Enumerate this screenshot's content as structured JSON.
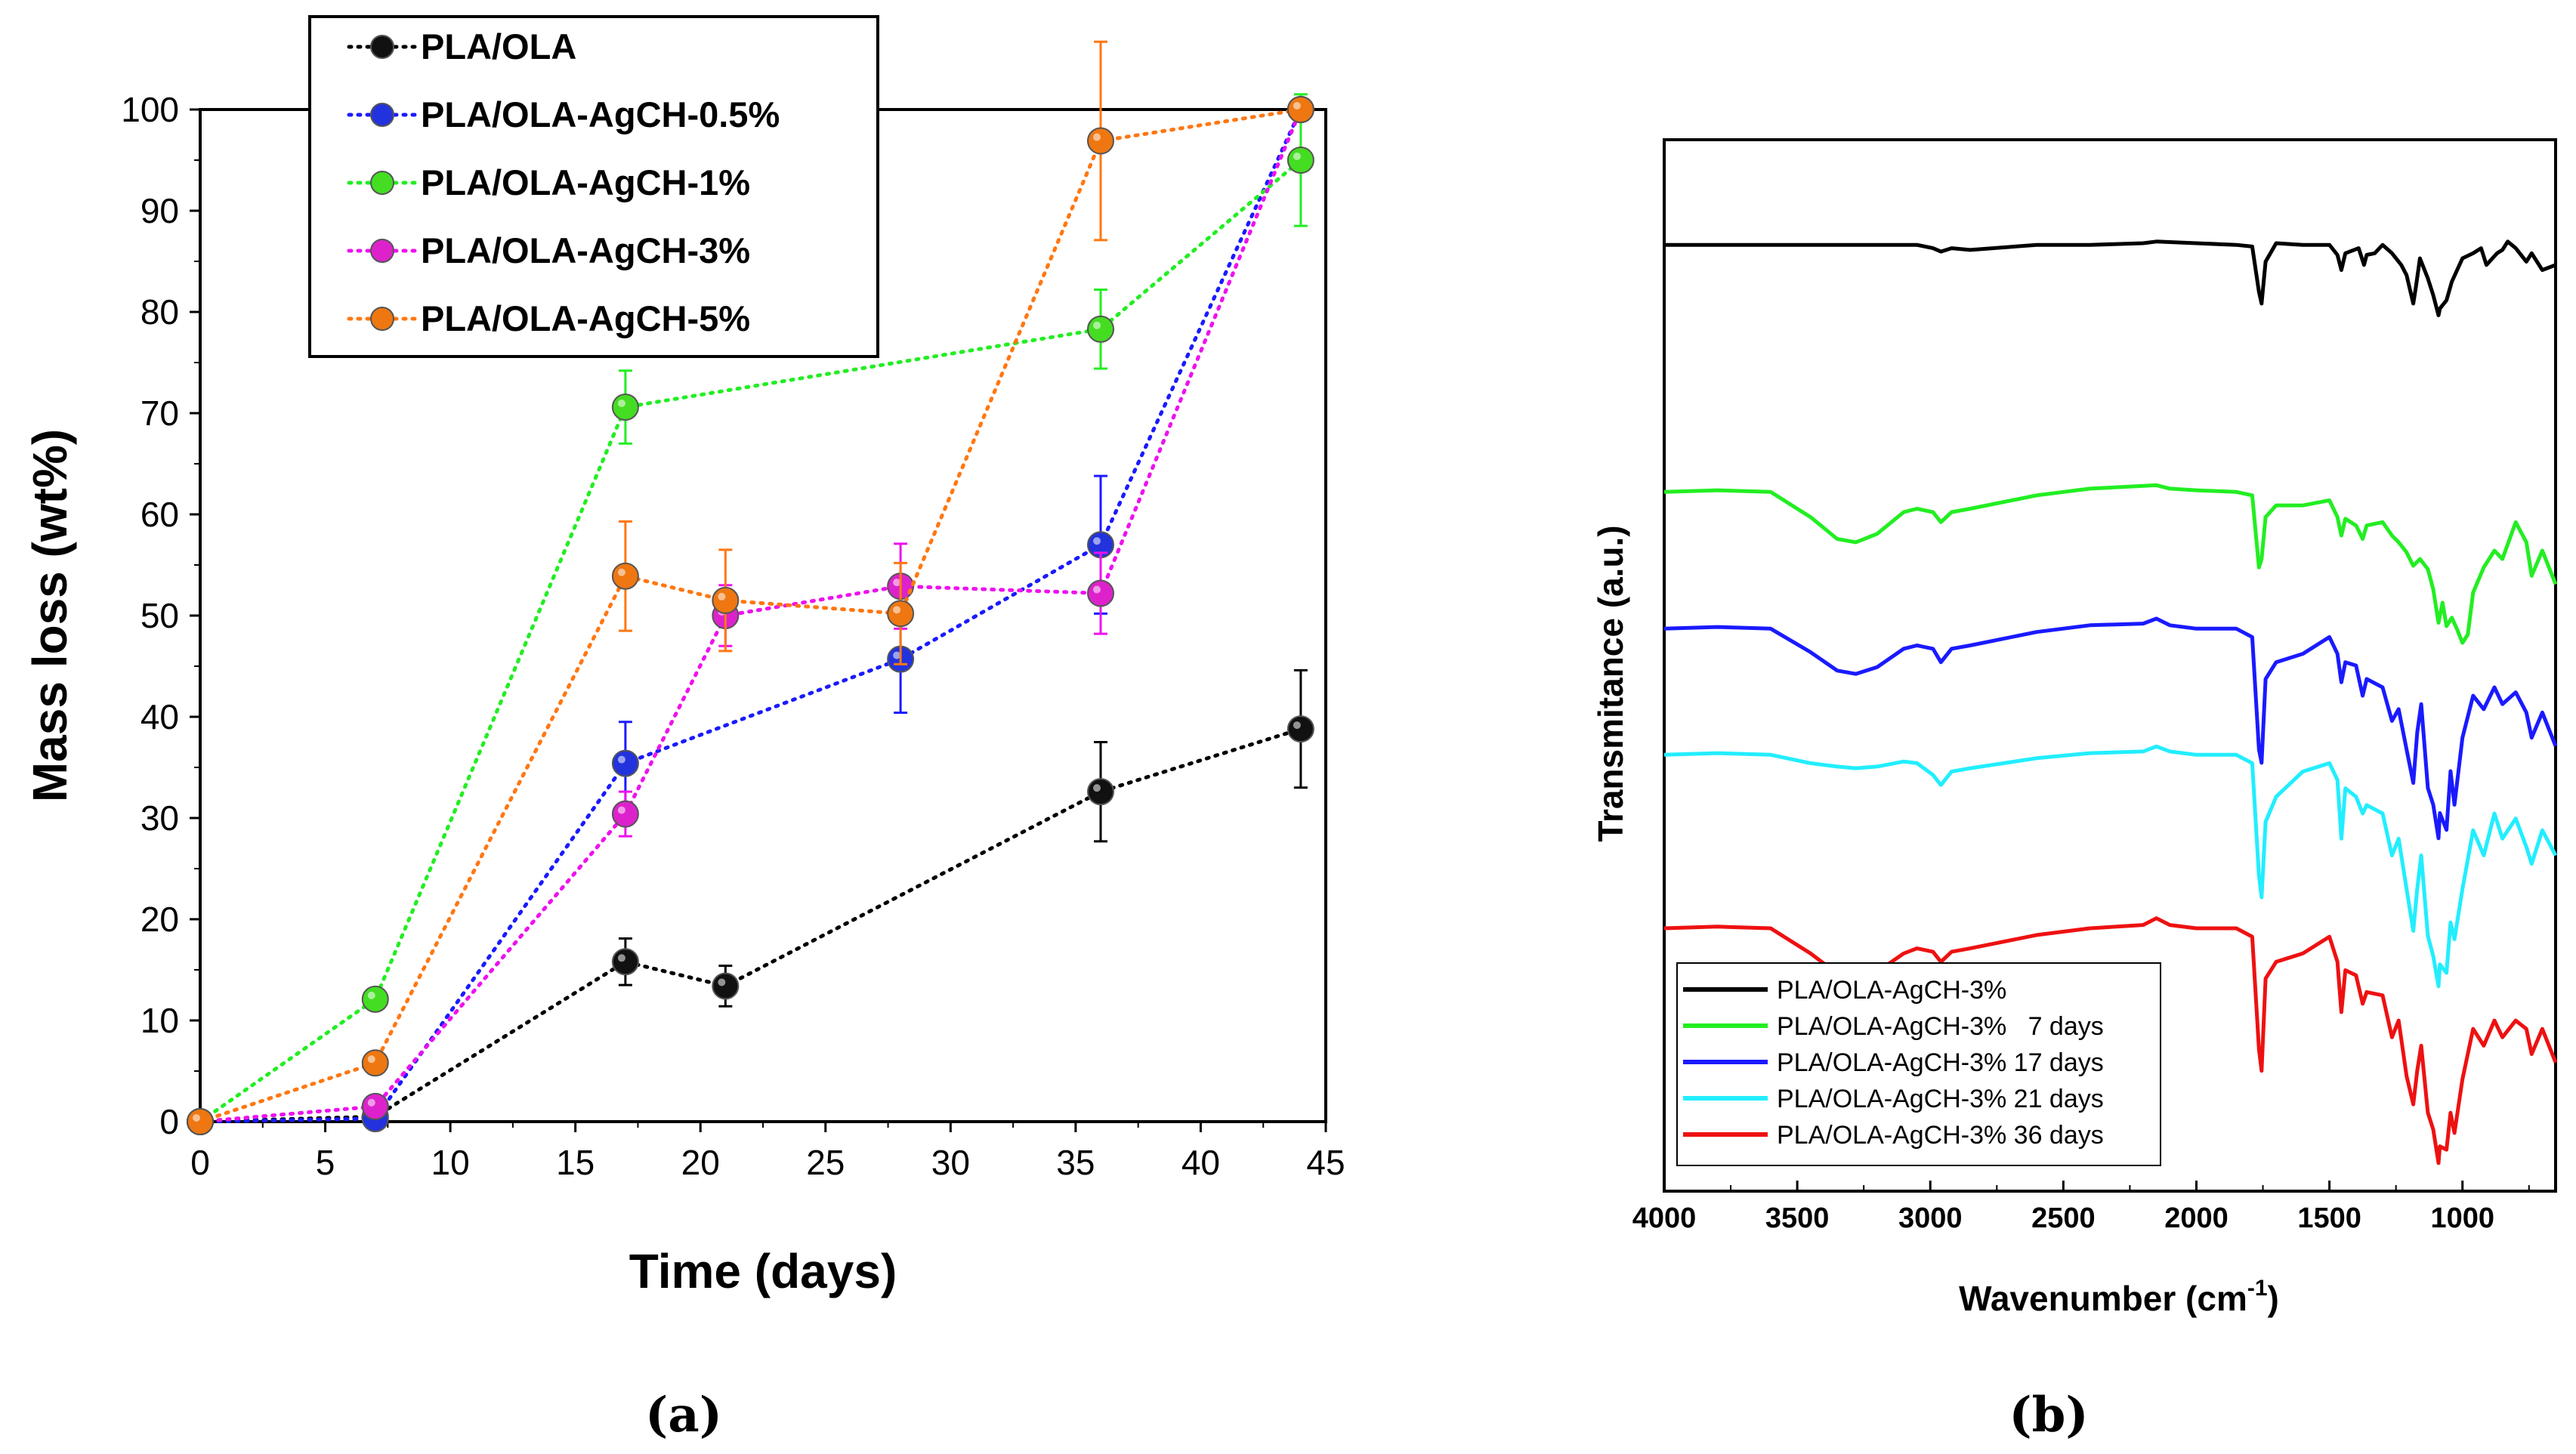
{
  "chart_data": [
    {
      "type": "line",
      "panel_label": "(a)",
      "xlabel": "Time (days)",
      "ylabel": "Mass loss (wt%)",
      "xlim": [
        0,
        45
      ],
      "ylim": [
        0,
        100
      ],
      "xticks": [
        "0",
        "5",
        "10",
        "15",
        "20",
        "25",
        "30",
        "35",
        "40",
        "45"
      ],
      "yticks": [
        "0",
        "10",
        "20",
        "30",
        "40",
        "50",
        "60",
        "70",
        "80",
        "90",
        "100"
      ],
      "legend_position": "top",
      "series": [
        {
          "name": "PLA/OLA",
          "color": "#000000",
          "marker_color": "#111111",
          "x": [
            0,
            7,
            17,
            21,
            36,
            44
          ],
          "y": [
            0,
            0.5,
            15.8,
            13.4,
            32.6,
            38.8
          ],
          "err": [
            0,
            0,
            2.3,
            2.0,
            4.9,
            5.8
          ]
        },
        {
          "name": "PLA/OLA-AgCH-0.5%",
          "color": "#1a1aff",
          "marker_color": "#2233dd",
          "x": [
            0,
            7,
            17,
            28,
            36,
            44
          ],
          "y": [
            0,
            0.3,
            35.4,
            45.7,
            57.0,
            100
          ],
          "err": [
            0,
            0,
            4.1,
            5.3,
            6.8,
            0
          ]
        },
        {
          "name": "PLA/OLA-AgCH-1%",
          "color": "#22ee22",
          "marker_color": "#44dd22",
          "x": [
            0,
            7,
            17,
            36,
            44
          ],
          "y": [
            0,
            12.1,
            70.6,
            78.3,
            95.0
          ],
          "err": [
            0,
            0,
            3.6,
            3.9,
            6.5
          ]
        },
        {
          "name": "PLA/OLA-AgCH-3%",
          "color": "#ee11ee",
          "marker_color": "#dd22cc",
          "x": [
            0,
            7,
            17,
            21,
            28,
            36,
            44
          ],
          "y": [
            0,
            1.5,
            30.4,
            50.0,
            52.9,
            52.2,
            100
          ],
          "err": [
            0,
            0,
            2.2,
            3.0,
            4.2,
            4.0,
            0
          ]
        },
        {
          "name": "PLA/OLA-AgCH-5%",
          "color": "#ff7711",
          "marker_color": "#ee7711",
          "x": [
            0,
            7,
            17,
            21,
            28,
            36,
            44
          ],
          "y": [
            0,
            5.8,
            53.9,
            51.5,
            50.2,
            96.9,
            100
          ],
          "err": [
            0,
            0,
            5.4,
            5.0,
            5.0,
            9.8,
            0
          ]
        }
      ]
    },
    {
      "type": "line",
      "panel_label": "(b)",
      "xlabel": "Wavenumber (cm",
      "xlabel_sup": "-1",
      "xlabel_close": ")",
      "ylabel": "Transmitance (a.u.)",
      "xlim": [
        4000,
        650
      ],
      "xticks": [
        "4000",
        "3500",
        "3000",
        "2500",
        "2000",
        "1500",
        "1000"
      ],
      "xtick_values": [
        4000,
        3500,
        3000,
        2500,
        2000,
        1500,
        1000
      ],
      "legend_position": "bottom-left",
      "series": [
        {
          "name": "PLA/OLA-AgCH-3%",
          "color": "#000000",
          "offset": 0.9,
          "scale": 0.55,
          "x": [
            4000,
            3600,
            3200,
            3050,
            2990,
            2960,
            2920,
            2850,
            2600,
            2400,
            2200,
            2150,
            2000,
            1850,
            1790,
            1765,
            1755,
            1740,
            1700,
            1600,
            1500,
            1470,
            1455,
            1440,
            1390,
            1370,
            1360,
            1330,
            1300,
            1265,
            1230,
            1210,
            1185,
            1175,
            1160,
            1130,
            1110,
            1090,
            1085,
            1060,
            1040,
            1000,
            960,
            930,
            910,
            870,
            850,
            830,
            800,
            760,
            740,
            700,
            650
          ],
          "y": [
            0,
            0,
            0,
            0,
            -0.02,
            -0.04,
            -0.02,
            -0.03,
            0,
            0,
            0.01,
            0.02,
            0.01,
            0,
            -0.01,
            -0.28,
            -0.35,
            -0.1,
            0.01,
            0,
            0,
            -0.06,
            -0.15,
            -0.05,
            -0.02,
            -0.12,
            -0.06,
            -0.05,
            0,
            -0.05,
            -0.12,
            -0.18,
            -0.35,
            -0.25,
            -0.08,
            -0.2,
            -0.3,
            -0.42,
            -0.38,
            -0.33,
            -0.22,
            -0.08,
            -0.05,
            -0.02,
            -0.12,
            -0.05,
            -0.03,
            0.02,
            -0.02,
            -0.1,
            -0.05,
            -0.15,
            -0.12
          ]
        },
        {
          "name": "PLA/OLA-AgCH-3%   7 days",
          "color": "#22ee22",
          "offset": 0.665,
          "scale": 0.55,
          "x": [
            4000,
            3800,
            3600,
            3450,
            3350,
            3280,
            3200,
            3100,
            3050,
            2990,
            2960,
            2920,
            2850,
            2600,
            2400,
            2150,
            2100,
            2000,
            1850,
            1790,
            1765,
            1755,
            1740,
            1700,
            1600,
            1500,
            1470,
            1455,
            1440,
            1400,
            1375,
            1360,
            1300,
            1265,
            1240,
            1210,
            1185,
            1160,
            1130,
            1110,
            1090,
            1075,
            1060,
            1040,
            1020,
            1000,
            980,
            960,
            920,
            880,
            850,
            800,
            760,
            740,
            700,
            650
          ],
          "y": [
            0,
            0.01,
            0,
            -0.15,
            -0.28,
            -0.3,
            -0.25,
            -0.12,
            -0.1,
            -0.12,
            -0.18,
            -0.12,
            -0.1,
            -0.02,
            0.02,
            0.04,
            0.02,
            0.01,
            0,
            -0.02,
            -0.45,
            -0.4,
            -0.15,
            -0.08,
            -0.08,
            -0.05,
            -0.15,
            -0.26,
            -0.16,
            -0.2,
            -0.28,
            -0.2,
            -0.18,
            -0.26,
            -0.3,
            -0.36,
            -0.44,
            -0.4,
            -0.46,
            -0.58,
            -0.78,
            -0.66,
            -0.8,
            -0.75,
            -0.82,
            -0.9,
            -0.85,
            -0.6,
            -0.45,
            -0.35,
            -0.4,
            -0.18,
            -0.3,
            -0.5,
            -0.35,
            -0.55
          ]
        },
        {
          "name": "PLA/OLA-AgCH-3% 17 days",
          "color": "#1a1aff",
          "offset": 0.535,
          "scale": 0.55,
          "x": [
            4000,
            3800,
            3600,
            3450,
            3350,
            3280,
            3200,
            3100,
            3050,
            2990,
            2960,
            2920,
            2850,
            2600,
            2400,
            2200,
            2150,
            2100,
            2000,
            1850,
            1790,
            1765,
            1755,
            1740,
            1700,
            1600,
            1500,
            1470,
            1455,
            1440,
            1400,
            1375,
            1360,
            1300,
            1265,
            1240,
            1210,
            1185,
            1170,
            1155,
            1130,
            1110,
            1090,
            1085,
            1060,
            1045,
            1030,
            1000,
            960,
            920,
            880,
            850,
            800,
            760,
            740,
            700,
            650
          ],
          "y": [
            0,
            0.01,
            0,
            -0.14,
            -0.25,
            -0.27,
            -0.23,
            -0.12,
            -0.1,
            -0.12,
            -0.2,
            -0.12,
            -0.1,
            -0.02,
            0.02,
            0.03,
            0.06,
            0.02,
            0,
            0,
            -0.05,
            -0.72,
            -0.8,
            -0.3,
            -0.2,
            -0.15,
            -0.05,
            -0.15,
            -0.32,
            -0.2,
            -0.22,
            -0.4,
            -0.3,
            -0.35,
            -0.55,
            -0.48,
            -0.72,
            -0.92,
            -0.62,
            -0.45,
            -0.95,
            -1.05,
            -1.25,
            -1.1,
            -1.2,
            -0.85,
            -1.05,
            -0.65,
            -0.4,
            -0.48,
            -0.35,
            -0.45,
            -0.38,
            -0.5,
            -0.65,
            -0.5,
            -0.7
          ]
        },
        {
          "name": "PLA/OLA-AgCH-3% 21 days",
          "color": "#22eeff",
          "offset": 0.415,
          "scale": 0.55,
          "x": [
            4000,
            3800,
            3600,
            3450,
            3350,
            3280,
            3200,
            3100,
            3050,
            2990,
            2960,
            2920,
            2850,
            2600,
            2400,
            2200,
            2150,
            2100,
            2000,
            1850,
            1790,
            1765,
            1755,
            1740,
            1700,
            1600,
            1500,
            1470,
            1455,
            1440,
            1400,
            1375,
            1360,
            1300,
            1265,
            1240,
            1210,
            1185,
            1170,
            1155,
            1130,
            1110,
            1090,
            1085,
            1060,
            1045,
            1030,
            1000,
            960,
            920,
            880,
            850,
            800,
            760,
            740,
            700,
            650
          ],
          "y": [
            0,
            0.01,
            0,
            -0.05,
            -0.07,
            -0.08,
            -0.07,
            -0.04,
            -0.05,
            -0.12,
            -0.18,
            -0.1,
            -0.08,
            -0.02,
            0.01,
            0.02,
            0.05,
            0.02,
            0,
            0,
            -0.05,
            -0.72,
            -0.85,
            -0.4,
            -0.25,
            -0.1,
            -0.05,
            -0.15,
            -0.5,
            -0.2,
            -0.25,
            -0.35,
            -0.3,
            -0.35,
            -0.6,
            -0.5,
            -0.8,
            -1.05,
            -0.8,
            -0.6,
            -1.08,
            -1.2,
            -1.38,
            -1.25,
            -1.3,
            -1.0,
            -1.1,
            -0.8,
            -0.45,
            -0.6,
            -0.35,
            -0.5,
            -0.38,
            -0.55,
            -0.65,
            -0.45,
            -0.6
          ]
        },
        {
          "name": "PLA/OLA-AgCH-3% 36 days",
          "color": "#ee1111",
          "offset": 0.25,
          "scale": 0.55,
          "x": [
            4000,
            3800,
            3600,
            3450,
            3350,
            3280,
            3200,
            3100,
            3050,
            2990,
            2960,
            2920,
            2850,
            2600,
            2400,
            2200,
            2150,
            2100,
            2000,
            1850,
            1790,
            1765,
            1755,
            1740,
            1700,
            1600,
            1500,
            1470,
            1455,
            1440,
            1400,
            1375,
            1360,
            1300,
            1265,
            1240,
            1210,
            1185,
            1170,
            1155,
            1130,
            1110,
            1090,
            1085,
            1060,
            1045,
            1030,
            1000,
            960,
            920,
            880,
            850,
            800,
            760,
            740,
            700,
            650
          ],
          "y": [
            0,
            0.01,
            0,
            -0.15,
            -0.27,
            -0.3,
            -0.26,
            -0.15,
            -0.12,
            -0.14,
            -0.2,
            -0.14,
            -0.12,
            -0.04,
            0.0,
            0.02,
            0.06,
            0.02,
            0,
            0,
            -0.05,
            -0.72,
            -0.85,
            -0.3,
            -0.2,
            -0.15,
            -0.05,
            -0.2,
            -0.5,
            -0.25,
            -0.28,
            -0.45,
            -0.38,
            -0.4,
            -0.65,
            -0.55,
            -0.88,
            -1.05,
            -0.85,
            -0.7,
            -1.1,
            -1.2,
            -1.4,
            -1.3,
            -1.32,
            -1.1,
            -1.22,
            -0.9,
            -0.6,
            -0.7,
            -0.55,
            -0.65,
            -0.55,
            -0.6,
            -0.75,
            -0.6,
            -0.8
          ]
        }
      ]
    }
  ]
}
